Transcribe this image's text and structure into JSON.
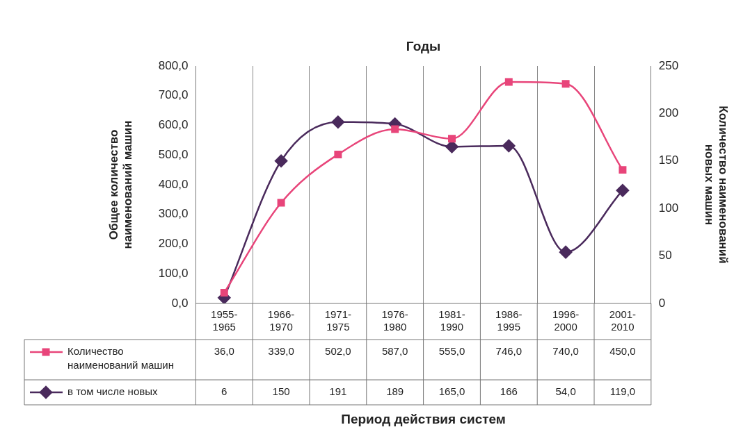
{
  "chart_data": {
    "type": "line",
    "title": "Годы",
    "annotations": [
      "Период действия систем"
    ],
    "ylabel": "Общее количество наименований машин",
    "y2label": "Количество наименований новых машин",
    "categories": [
      "1955-1965",
      "1966-1970",
      "1971-1975",
      "1976-1980",
      "1981-1990",
      "1986-1995",
      "1996-2000",
      "2001-2010"
    ],
    "series": [
      {
        "name": "Количество наименований машин",
        "color": "#e8457a",
        "marker": "square",
        "values": [
          36.0,
          339.0,
          502.0,
          587.0,
          555.0,
          746.0,
          740.0,
          450.0
        ],
        "value_labels": [
          "36,0",
          "339,0",
          "502,0",
          "587,0",
          "555,0",
          "746,0",
          "740,0",
          "450,0"
        ]
      },
      {
        "name": "в том числе новых",
        "color": "#4a2a5c",
        "marker": "diamond",
        "axis": "y2",
        "values": [
          6,
          150,
          191,
          189,
          165.0,
          166,
          54.0,
          119.0
        ],
        "value_labels": [
          "6",
          "150",
          "191",
          "189",
          "165,0",
          "166",
          "54,0",
          "119,0"
        ]
      }
    ],
    "ylim": [
      0,
      800
    ],
    "yticks": [
      {
        "value": 0,
        "label": "0,0"
      },
      {
        "value": 100,
        "label": "100,0"
      },
      {
        "value": 200,
        "label": "200,0"
      },
      {
        "value": 300,
        "label": "300,0"
      },
      {
        "value": 400,
        "label": "400,0"
      },
      {
        "value": 500,
        "label": "500,0"
      },
      {
        "value": 600,
        "label": "600,0"
      },
      {
        "value": 700,
        "label": "700,0"
      },
      {
        "value": 800,
        "label": "800,0"
      }
    ],
    "y2lim": [
      0,
      250
    ],
    "y2ticks": [
      0,
      50,
      100,
      150,
      200,
      250
    ],
    "grid": "x",
    "legend": "bottom left"
  }
}
